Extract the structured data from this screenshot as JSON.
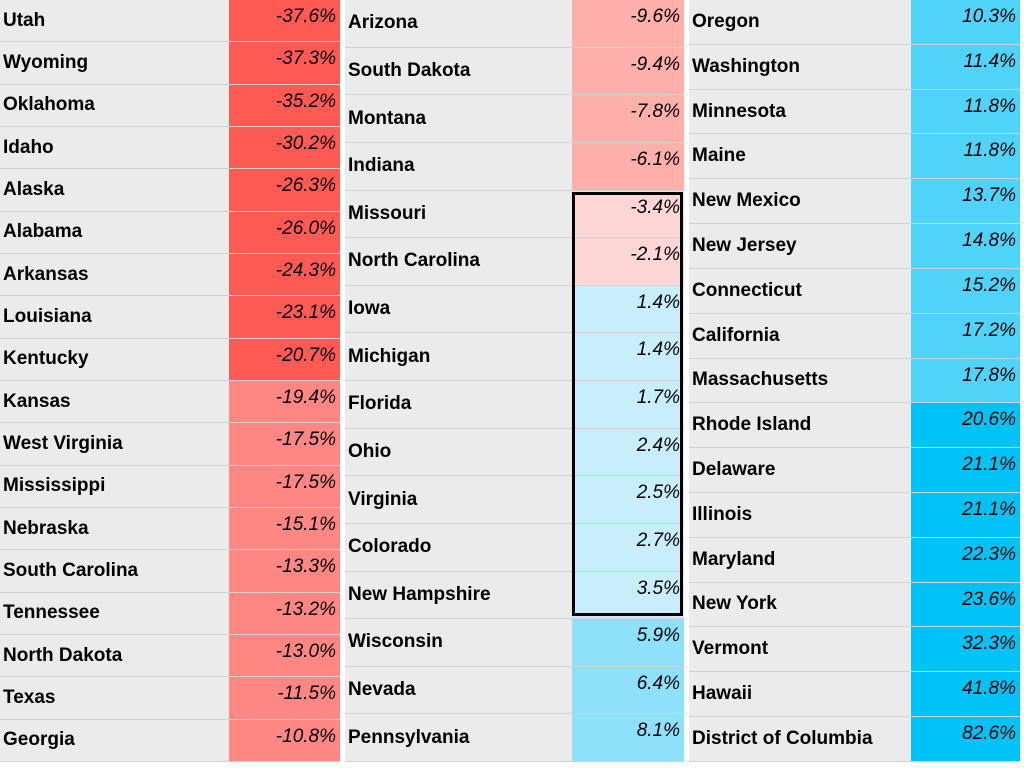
{
  "columns": [
    {
      "rows": [
        {
          "state": "Utah",
          "value": "-37.6%",
          "color": "#ff5a54"
        },
        {
          "state": "Wyoming",
          "value": "-37.3%",
          "color": "#ff5a54"
        },
        {
          "state": "Oklahoma",
          "value": "-35.2%",
          "color": "#ff5a54"
        },
        {
          "state": "Idaho",
          "value": "-30.2%",
          "color": "#ff5a54"
        },
        {
          "state": "Alaska",
          "value": "-26.3%",
          "color": "#ff5a54"
        },
        {
          "state": "Alabama",
          "value": "-26.0%",
          "color": "#ff5a54"
        },
        {
          "state": "Arkansas",
          "value": "-24.3%",
          "color": "#ff5a54"
        },
        {
          "state": "Louisiana",
          "value": "-23.1%",
          "color": "#ff5a54"
        },
        {
          "state": "Kentucky",
          "value": "-20.7%",
          "color": "#ff5a54"
        },
        {
          "state": "Kansas",
          "value": "-19.4%",
          "color": "#ff8783"
        },
        {
          "state": "West Virginia",
          "value": "-17.5%",
          "color": "#ff8783"
        },
        {
          "state": "Mississippi",
          "value": "-17.5%",
          "color": "#ff8783"
        },
        {
          "state": "Nebraska",
          "value": "-15.1%",
          "color": "#ff8783"
        },
        {
          "state": "South Carolina",
          "value": "-13.3%",
          "color": "#ff8783"
        },
        {
          "state": "Tennessee",
          "value": "-13.2%",
          "color": "#ff8783"
        },
        {
          "state": "North Dakota",
          "value": "-13.0%",
          "color": "#ff8783"
        },
        {
          "state": "Texas",
          "value": "-11.5%",
          "color": "#ff8783"
        },
        {
          "state": "Georgia",
          "value": "-10.8%",
          "color": "#ff8783"
        }
      ]
    },
    {
      "rows": [
        {
          "state": "Arizona",
          "value": "-9.6%",
          "color": "#ffb0ab"
        },
        {
          "state": "South Dakota",
          "value": "-9.4%",
          "color": "#ffb0ab"
        },
        {
          "state": "Montana",
          "value": "-7.8%",
          "color": "#ffb0ab"
        },
        {
          "state": "Indiana",
          "value": "-6.1%",
          "color": "#ffb0ab"
        },
        {
          "state": "Missouri",
          "value": "-3.4%",
          "color": "#ffd6d6"
        },
        {
          "state": "North Carolina",
          "value": "-2.1%",
          "color": "#ffd6d6"
        },
        {
          "state": "Iowa",
          "value": "1.4%",
          "color": "#c8eefc"
        },
        {
          "state": "Michigan",
          "value": "1.4%",
          "color": "#c8eefc"
        },
        {
          "state": "Florida",
          "value": "1.7%",
          "color": "#c8eefc"
        },
        {
          "state": "Ohio",
          "value": "2.4%",
          "color": "#c8eefc"
        },
        {
          "state": "Virginia",
          "value": "2.5%",
          "color": "#c8eefc"
        },
        {
          "state": "Colorado",
          "value": "2.7%",
          "color": "#c8eefc"
        },
        {
          "state": "New Hampshire",
          "value": "3.5%",
          "color": "#c8eefc"
        },
        {
          "state": "Wisconsin",
          "value": "5.9%",
          "color": "#8fe0fb"
        },
        {
          "state": "Nevada",
          "value": "6.4%",
          "color": "#8fe0fb"
        },
        {
          "state": "Pennsylvania",
          "value": "8.1%",
          "color": "#8fe0fb"
        }
      ]
    },
    {
      "rows": [
        {
          "state": "Oregon",
          "value": "10.3%",
          "color": "#4fd3f8"
        },
        {
          "state": "Washington",
          "value": "11.4%",
          "color": "#4fd3f8"
        },
        {
          "state": "Minnesota",
          "value": "11.8%",
          "color": "#4fd3f8"
        },
        {
          "state": "Maine",
          "value": "11.8%",
          "color": "#4fd3f8"
        },
        {
          "state": "New Mexico",
          "value": "13.7%",
          "color": "#4fd3f8"
        },
        {
          "state": "New Jersey",
          "value": "14.8%",
          "color": "#4fd3f8"
        },
        {
          "state": "Connecticut",
          "value": "15.2%",
          "color": "#4fd3f8"
        },
        {
          "state": "California",
          "value": "17.2%",
          "color": "#4fd3f8"
        },
        {
          "state": "Massachusetts",
          "value": "17.8%",
          "color": "#4fd3f8"
        },
        {
          "state": "Rhode Island",
          "value": "20.6%",
          "color": "#00c2f5"
        },
        {
          "state": "Delaware",
          "value": "21.1%",
          "color": "#00c2f5"
        },
        {
          "state": "Illinois",
          "value": "21.1%",
          "color": "#00c2f5"
        },
        {
          "state": "Maryland",
          "value": "22.3%",
          "color": "#00c2f5"
        },
        {
          "state": "New York",
          "value": "23.6%",
          "color": "#00c2f5"
        },
        {
          "state": "Vermont",
          "value": "32.3%",
          "color": "#00c2f5"
        },
        {
          "state": "Hawaii",
          "value": "41.8%",
          "color": "#00c2f5"
        },
        {
          "state": "District of Columbia",
          "value": "82.6%",
          "color": "#00c2f5"
        }
      ]
    }
  ]
}
